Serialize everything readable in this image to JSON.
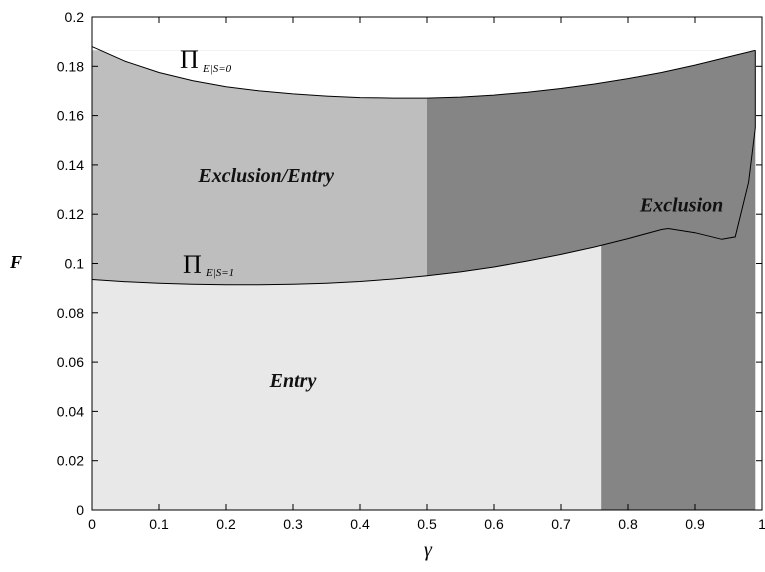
{
  "chart_data": {
    "type": "area",
    "xlabel": "γ",
    "ylabel": "F",
    "xlim": [
      0,
      1
    ],
    "ylim": [
      0,
      0.2
    ],
    "xticks": [
      "0",
      "0.1",
      "0.2",
      "0.3",
      "0.4",
      "0.5",
      "0.6",
      "0.7",
      "0.8",
      "0.9",
      "1"
    ],
    "yticks": [
      "0",
      "0.02",
      "0.04",
      "0.06",
      "0.08",
      "0.1",
      "0.12",
      "0.14",
      "0.16",
      "0.18",
      "0.2"
    ],
    "grid": false,
    "region_colors": {
      "entry": "#e8e8e8",
      "exclusion_entry": "#bebebe",
      "exclusion": "#858585"
    },
    "regions": [
      {
        "label": "Entry",
        "x": 0.3,
        "y": 0.05
      },
      {
        "label": "Exclusion/Entry",
        "x": 0.26,
        "y": 0.133
      },
      {
        "label": "Exclusion",
        "x": 0.88,
        "y": 0.121
      }
    ],
    "series": [
      {
        "name": "Π",
        "subscript": "E|S=0",
        "x": [
          0.0,
          0.05,
          0.1,
          0.15,
          0.2,
          0.25,
          0.3,
          0.35,
          0.4,
          0.45,
          0.5,
          0.55,
          0.6,
          0.65,
          0.7,
          0.75,
          0.8,
          0.85,
          0.9,
          0.95,
          0.98,
          0.99
        ],
        "y": [
          0.188,
          0.182,
          0.1775,
          0.1742,
          0.1717,
          0.17,
          0.1688,
          0.1679,
          0.1673,
          0.1671,
          0.1671,
          0.1675,
          0.1683,
          0.1695,
          0.171,
          0.1728,
          0.175,
          0.1775,
          0.1805,
          0.1838,
          0.1858,
          0.1865
        ]
      },
      {
        "name": "Π",
        "subscript": "E|S=1",
        "x": [
          0.0,
          0.05,
          0.1,
          0.15,
          0.2,
          0.25,
          0.3,
          0.35,
          0.4,
          0.45,
          0.5,
          0.55,
          0.6,
          0.65,
          0.7,
          0.75,
          0.8,
          0.85,
          0.86,
          0.9,
          0.94,
          0.96,
          0.98,
          0.99,
          0.99
        ],
        "y": [
          0.0935,
          0.0926,
          0.092,
          0.0916,
          0.0914,
          0.0914,
          0.0916,
          0.092,
          0.0927,
          0.0937,
          0.095,
          0.0966,
          0.0986,
          0.101,
          0.1037,
          0.1067,
          0.1101,
          0.1138,
          0.1142,
          0.1125,
          0.1098,
          0.1108,
          0.133,
          0.155,
          0.1865
        ]
      }
    ]
  }
}
